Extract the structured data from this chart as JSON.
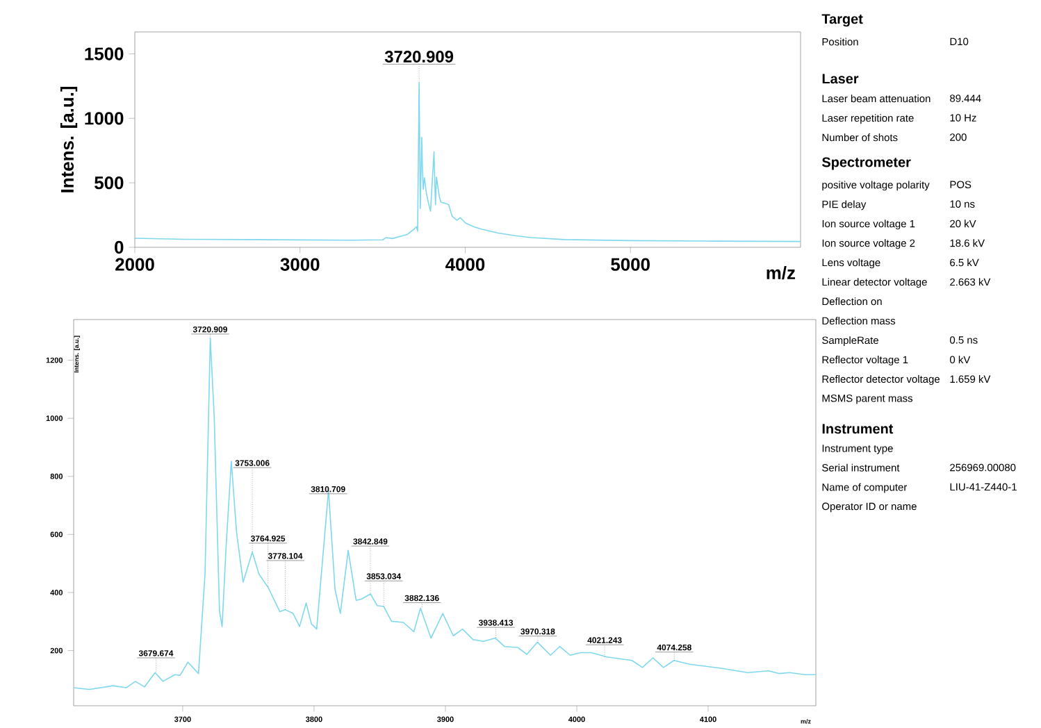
{
  "chart_data": [
    {
      "type": "line",
      "xlabel": "m/z",
      "ylabel": "Intens. [a.u.]",
      "xlim": [
        2000,
        6030
      ],
      "ylim": [
        0,
        1670
      ],
      "xticks": [
        2000,
        3000,
        4000,
        5000
      ],
      "yticks": [
        0,
        500,
        1000,
        1500
      ],
      "x": [
        2000,
        2300,
        2700,
        3000,
        3300,
        3500,
        3520,
        3560,
        3650,
        3690,
        3705,
        3712,
        3721,
        3728,
        3737,
        3741,
        3746,
        3753,
        3765,
        3778,
        3790,
        3811,
        3820,
        3826,
        3843,
        3853,
        3882,
        3900,
        3921,
        3950,
        3970,
        4000,
        4050,
        4100,
        4200,
        4300,
        4400,
        4600,
        5000,
        5500,
        6030
      ],
      "series": [
        {
          "color": "#7fd8ee",
          "values": [
            70,
            62,
            60,
            57,
            55,
            58,
            75,
            68,
            100,
            140,
            160,
            125,
            1276,
            300,
            852,
            600,
            450,
            540,
            420,
            340,
            280,
            740,
            330,
            545,
            395,
            350,
            340,
            330,
            240,
            210,
            230,
            190,
            160,
            140,
            110,
            90,
            75,
            60,
            52,
            48,
            45
          ]
        }
      ],
      "annotations": [
        {
          "text": "3720.909",
          "x": 3720.909,
          "y": 1276
        }
      ]
    },
    {
      "type": "line",
      "xlabel": "m/z",
      "ylabel": "Intens. [a.u.]",
      "xlim": [
        3617,
        4182
      ],
      "ylim": [
        10,
        1340
      ],
      "xticks": [
        3700,
        3800,
        3900,
        4000,
        4100
      ],
      "yticks": [
        200,
        400,
        600,
        800,
        1000,
        1200
      ],
      "x": [
        3617,
        3629,
        3647,
        3657,
        3664,
        3671,
        3679,
        3685,
        3694,
        3698,
        3704,
        3712,
        3717,
        3721,
        3724,
        3728,
        3730,
        3733,
        3737,
        3741,
        3746,
        3753,
        3758,
        3765,
        3774,
        3778,
        3784,
        3789,
        3794,
        3798,
        3802,
        3811,
        3816,
        3820,
        3826,
        3832,
        3836,
        3843,
        3848,
        3853,
        3859,
        3868,
        3876,
        3881,
        3889,
        3898,
        3906,
        3913,
        3921,
        3929,
        3938,
        3945,
        3955,
        3962,
        3970,
        3980,
        3987,
        3995,
        4003,
        4011,
        4023,
        4042,
        4050,
        4058,
        4066,
        4074,
        4086,
        4110,
        4130,
        4146,
        4154,
        4162,
        4174,
        4182
      ],
      "series": [
        {
          "color": "#7fd8ee",
          "values": [
            72,
            66,
            79,
            72,
            94,
            75,
            124,
            94,
            117,
            115,
            160,
            121,
            464,
            1276,
            1005,
            337,
            283,
            554,
            852,
            608,
            436,
            539,
            464,
            418,
            334,
            341,
            328,
            283,
            364,
            292,
            274,
            752,
            409,
            328,
            545,
            373,
            377,
            395,
            355,
            352,
            301,
            297,
            265,
            346,
            243,
            328,
            251,
            274,
            238,
            232,
            243,
            214,
            211,
            187,
            229,
            184,
            214,
            184,
            193,
            193,
            178,
            166,
            142,
            175,
            142,
            166,
            153,
            139,
            124,
            130,
            121,
            124,
            117,
            117
          ]
        }
      ],
      "annotations": [
        {
          "text": "3679.674",
          "x": 3679.674,
          "y": 124
        },
        {
          "text": "3720.909",
          "x": 3720.909,
          "y": 1276
        },
        {
          "text": "3753.006",
          "x": 3753.006,
          "y": 539
        },
        {
          "text": "3764.925",
          "x": 3764.925,
          "y": 418
        },
        {
          "text": "3778.104",
          "x": 3778.104,
          "y": 341
        },
        {
          "text": "3810.709",
          "x": 3810.709,
          "y": 752
        },
        {
          "text": "3842.849",
          "x": 3842.849,
          "y": 395
        },
        {
          "text": "3853.034",
          "x": 3853.034,
          "y": 352
        },
        {
          "text": "3882.136",
          "x": 3882.136,
          "y": 346
        },
        {
          "text": "3938.413",
          "x": 3938.413,
          "y": 243
        },
        {
          "text": "3970.318",
          "x": 3970.318,
          "y": 229
        },
        {
          "text": "4021.243",
          "x": 4021.243,
          "y": 178
        },
        {
          "text": "4074.258",
          "x": 4074.258,
          "y": 166
        }
      ]
    },
    {
      "type": "other",
      "title": "Target",
      "categories": [
        "Position"
      ],
      "value_labels": [
        "D10"
      ]
    },
    {
      "type": "other",
      "title": "Laser",
      "categories": [
        "Laser beam attenuation",
        "Laser repetition rate",
        "Number of shots"
      ],
      "value_labels": [
        "89.444",
        "10 Hz",
        "200"
      ]
    },
    {
      "type": "other",
      "title": "Spectrometer",
      "categories": [
        "positive voltage polarity",
        "PIE delay",
        "Ion source voltage 1",
        "Ion source voltage 2",
        "Lens voltage",
        "Linear detector voltage",
        "Deflection on",
        "Deflection mass",
        "SampleRate",
        "Reflector voltage 1",
        "Reflector detector voltage",
        "MSMS parent mass"
      ],
      "value_labels": [
        "POS",
        "10 ns",
        "20 kV",
        "18.6 kV",
        "6.5 kV",
        "2.663 kV",
        null,
        null,
        "0.5 ns",
        "0 kV",
        "1.659 kV",
        null
      ]
    },
    {
      "type": "other",
      "title": "Instrument",
      "categories": [
        "Instrument type",
        "Serial instrument",
        "Name of computer",
        "Operator ID or name"
      ],
      "value_labels": [
        null,
        "256969.00080",
        "LIU-41-Z440-1",
        null
      ]
    }
  ]
}
